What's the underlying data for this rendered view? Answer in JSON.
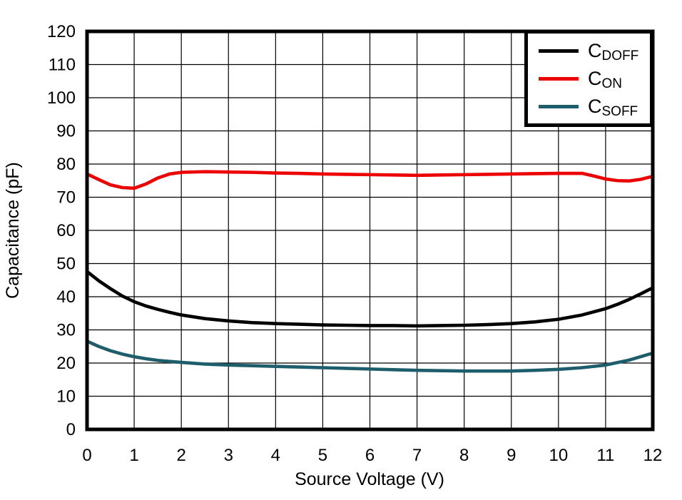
{
  "chart_data": {
    "type": "line",
    "title": "",
    "xlabel": "Source Voltage (V)",
    "ylabel": "Capacitance (pF)",
    "xlim": [
      0,
      12
    ],
    "ylim": [
      0,
      120
    ],
    "x_ticks": [
      0,
      1,
      2,
      3,
      4,
      5,
      6,
      7,
      8,
      9,
      10,
      11,
      12
    ],
    "y_ticks": [
      0,
      10,
      20,
      30,
      40,
      50,
      60,
      70,
      80,
      90,
      100,
      110,
      120
    ],
    "grid": true,
    "grid_color": "#000000",
    "axis_color": "#000000",
    "legend_position": "top-right",
    "series": [
      {
        "name": "CDOFF",
        "label_main": "C",
        "label_sub": "DOFF",
        "color": "#000000",
        "points": [
          [
            0,
            47.6
          ],
          [
            0.25,
            44.8
          ],
          [
            0.5,
            42.4
          ],
          [
            0.75,
            40.2
          ],
          [
            1,
            38.5
          ],
          [
            1.25,
            37.2
          ],
          [
            1.5,
            36.2
          ],
          [
            1.75,
            35.3
          ],
          [
            2,
            34.5
          ],
          [
            2.5,
            33.4
          ],
          [
            3,
            32.7
          ],
          [
            3.5,
            32.2
          ],
          [
            4,
            31.9
          ],
          [
            4.5,
            31.7
          ],
          [
            5,
            31.5
          ],
          [
            5.5,
            31.4
          ],
          [
            6,
            31.3
          ],
          [
            6.5,
            31.3
          ],
          [
            7,
            31.2
          ],
          [
            7.5,
            31.3
          ],
          [
            8,
            31.4
          ],
          [
            8.5,
            31.6
          ],
          [
            9,
            31.9
          ],
          [
            9.5,
            32.4
          ],
          [
            10,
            33.2
          ],
          [
            10.5,
            34.5
          ],
          [
            11,
            36.4
          ],
          [
            11.25,
            37.7
          ],
          [
            11.5,
            39.2
          ],
          [
            11.75,
            40.9
          ],
          [
            12,
            42.7
          ]
        ]
      },
      {
        "name": "CON",
        "label_main": "C",
        "label_sub": "ON",
        "color": "#EC0000",
        "points": [
          [
            0,
            77.0
          ],
          [
            0.25,
            75.3
          ],
          [
            0.5,
            73.7
          ],
          [
            0.75,
            72.9
          ],
          [
            1,
            72.7
          ],
          [
            1.25,
            74.0
          ],
          [
            1.5,
            75.8
          ],
          [
            1.75,
            77.0
          ],
          [
            2,
            77.5
          ],
          [
            2.5,
            77.7
          ],
          [
            3,
            77.6
          ],
          [
            3.5,
            77.5
          ],
          [
            4,
            77.3
          ],
          [
            4.5,
            77.2
          ],
          [
            5,
            77.0
          ],
          [
            5.5,
            76.9
          ],
          [
            6,
            76.8
          ],
          [
            6.5,
            76.7
          ],
          [
            7,
            76.6
          ],
          [
            7.5,
            76.7
          ],
          [
            8,
            76.8
          ],
          [
            8.5,
            76.9
          ],
          [
            9,
            77.0
          ],
          [
            9.5,
            77.1
          ],
          [
            10,
            77.2
          ],
          [
            10.5,
            77.2
          ],
          [
            10.75,
            76.4
          ],
          [
            11,
            75.5
          ],
          [
            11.25,
            75.0
          ],
          [
            11.5,
            74.9
          ],
          [
            11.75,
            75.4
          ],
          [
            12,
            76.3
          ]
        ]
      },
      {
        "name": "CSOFF",
        "label_main": "C",
        "label_sub": "SOFF",
        "color": "#1E5D6B",
        "points": [
          [
            0,
            26.6
          ],
          [
            0.25,
            25.0
          ],
          [
            0.5,
            23.7
          ],
          [
            0.75,
            22.7
          ],
          [
            1,
            21.9
          ],
          [
            1.25,
            21.3
          ],
          [
            1.5,
            20.8
          ],
          [
            1.75,
            20.5
          ],
          [
            2,
            20.2
          ],
          [
            2.5,
            19.7
          ],
          [
            3,
            19.4
          ],
          [
            3.5,
            19.2
          ],
          [
            4,
            19.0
          ],
          [
            4.5,
            18.8
          ],
          [
            5,
            18.6
          ],
          [
            5.5,
            18.4
          ],
          [
            6,
            18.2
          ],
          [
            6.5,
            18.0
          ],
          [
            7,
            17.8
          ],
          [
            7.5,
            17.7
          ],
          [
            8,
            17.6
          ],
          [
            8.5,
            17.6
          ],
          [
            9,
            17.6
          ],
          [
            9.5,
            17.8
          ],
          [
            10,
            18.1
          ],
          [
            10.5,
            18.6
          ],
          [
            11,
            19.4
          ],
          [
            11.5,
            20.9
          ],
          [
            12,
            23.0
          ]
        ]
      }
    ]
  }
}
